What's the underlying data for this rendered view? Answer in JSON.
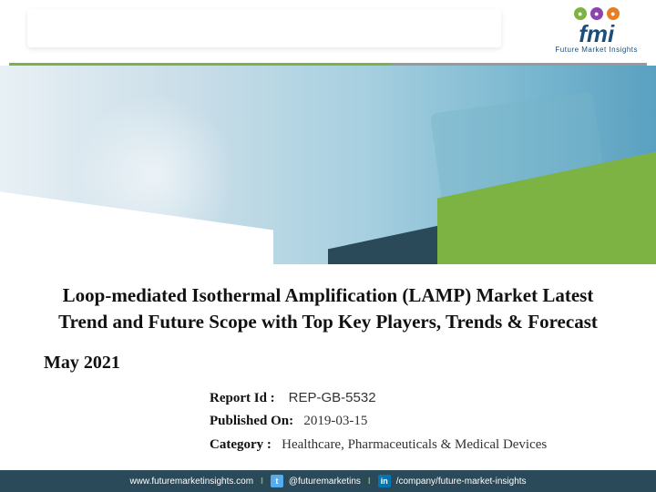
{
  "logo": {
    "text": "fmi",
    "subtitle": "Future Market Insights"
  },
  "title": "Loop-mediated Isothermal Amplification (LAMP) Market Latest Trend and Future Scope with Top Key Players, Trends & Forecast",
  "date": "May 2021",
  "meta": {
    "report_id_label": "Report Id :",
    "report_id_value": "REP-GB-5532",
    "published_label": "Published On:",
    "published_value": "2019-03-15",
    "category_label": "Category :",
    "category_value": "Healthcare, Pharmaceuticals & Medical Devices"
  },
  "footer": {
    "website": "www.futuremarketinsights.com",
    "twitter": "@futuremarketins",
    "linkedin": "/company/future-market-insights"
  },
  "colors": {
    "accent_green": "#7cb342",
    "brand_blue": "#1a4d7a",
    "footer_bg": "#2a4a5a"
  }
}
